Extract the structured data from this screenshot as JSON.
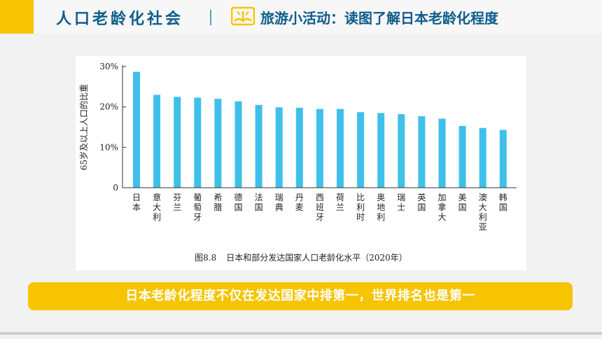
{
  "header": {
    "section_title": "人口老龄化社会",
    "activity_title": "旅游小活动：读图了解日本老龄化程度",
    "activity_icon": "book-icon"
  },
  "figure": {
    "number": "图8.8",
    "caption": "日本和部分发达国家人口老龄化水平（2020年）"
  },
  "chart_data": {
    "type": "bar",
    "categories": [
      "日本",
      "意大利",
      "芬兰",
      "葡萄牙",
      "希腊",
      "德国",
      "法国",
      "瑞典",
      "丹麦",
      "西班牙",
      "荷兰",
      "比利时",
      "奥地利",
      "瑞士",
      "英国",
      "加拿大",
      "美国",
      "澳大利亚",
      "韩国"
    ],
    "values": [
      28.7,
      23.0,
      22.5,
      22.3,
      22.0,
      21.4,
      20.5,
      19.9,
      19.8,
      19.5,
      19.5,
      18.7,
      18.5,
      18.2,
      17.7,
      17.1,
      15.3,
      14.8,
      14.3
    ],
    "ylabel": "65岁及以上人口的比重",
    "yticks": [
      "0",
      "10%",
      "20%",
      "30%"
    ],
    "ylim": [
      0,
      30
    ],
    "bar_color": "#3fc0ea"
  },
  "banner": {
    "text": "日本老龄化程度不仅在发达国家中排第一，世界排名也是第一"
  },
  "colors": {
    "accent": "#f6c400",
    "title": "#0d5d8a"
  }
}
